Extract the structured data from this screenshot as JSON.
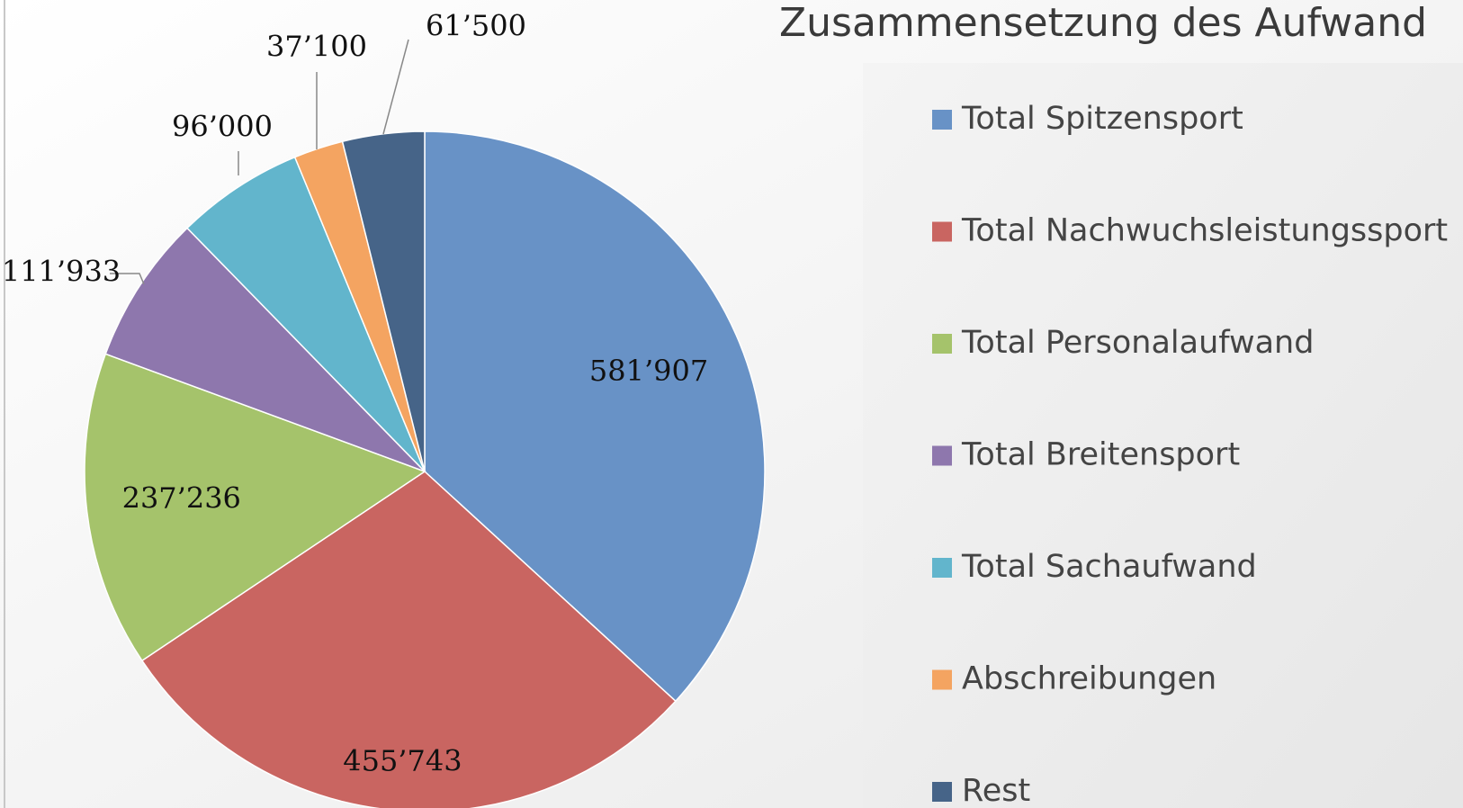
{
  "chart_data": {
    "type": "pie",
    "title": "Zusammensetzung des Aufwand",
    "categories": [
      "Total Spitzensport",
      "Total Nachwuchsleistungssport",
      "Total Personalaufwand",
      "Total Breitensport",
      "Total Sachaufwand",
      "Abschreibungen",
      "Rest"
    ],
    "values": [
      581907,
      455743,
      237236,
      111933,
      96000,
      37100,
      61500
    ],
    "value_labels": [
      "581’907",
      "455’743",
      "237’236",
      "111’933",
      "96’000",
      "37’100",
      "61’500"
    ],
    "colors": [
      "#6892c6",
      "#c96561",
      "#a5c36b",
      "#8e77ad",
      "#62b5cc",
      "#f4a461",
      "#466488"
    ],
    "legend": "right"
  }
}
